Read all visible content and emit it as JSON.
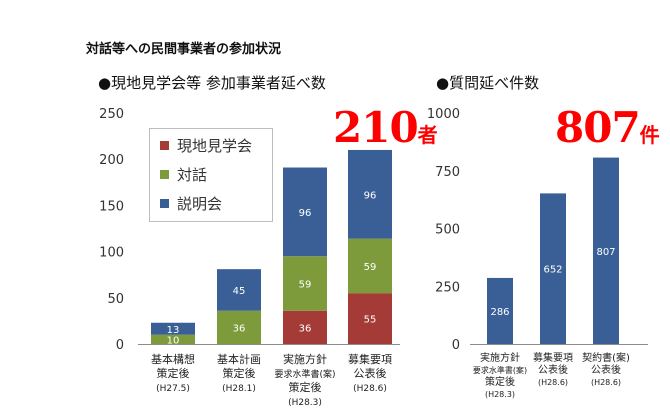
{
  "page": {
    "title": "対話等への民間事業者の参加状況"
  },
  "chart_data": [
    {
      "type": "bar",
      "stacked": true,
      "title": "●現地見学会等 参加事業者延べ数",
      "total_label": "210",
      "total_unit": "者",
      "categories": [
        [
          "基本構想",
          "策定後",
          "(H27.5)"
        ],
        [
          "基本計画",
          "策定後",
          "(H28.1)"
        ],
        [
          "実施方針",
          "要求水準書(案)",
          "策定後",
          "(H28.3)"
        ],
        [
          "募集要項",
          "公表後",
          "(H28.6)"
        ]
      ],
      "series": [
        {
          "name": "現地見学会",
          "color": "#a43b37",
          "values": [
            0,
            0,
            36,
            55
          ]
        },
        {
          "name": "対話",
          "color": "#7e9b3b",
          "values": [
            10,
            36,
            59,
            59
          ]
        },
        {
          "name": "説明会",
          "color": "#3a5f96",
          "values": [
            13,
            45,
            96,
            96
          ]
        }
      ],
      "yticks": [
        "0",
        "50",
        "100",
        "150",
        "200",
        "250"
      ],
      "ylim": [
        0,
        250
      ],
      "legend": "top-left"
    },
    {
      "type": "bar",
      "title": "●質問延べ件数",
      "total_label": "807",
      "total_unit": "件",
      "categories": [
        [
          "実施方針",
          "要求水準書(案)",
          "策定後",
          "(H28.3)"
        ],
        [
          "募集要項",
          "公表後",
          "(H28.6)"
        ],
        [
          "契約書(案)",
          "公表後",
          "(H28.6)"
        ]
      ],
      "color": "#3a5f96",
      "values": [
        286,
        652,
        807
      ],
      "yticks": [
        "0",
        "250",
        "500",
        "750",
        "1000"
      ],
      "ylim": [
        0,
        1000
      ]
    }
  ]
}
